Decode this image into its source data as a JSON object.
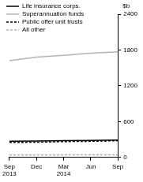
{
  "chart_data": {
    "type": "line",
    "y_label": "$b",
    "categories": [
      "Sep 2013",
      "Dec",
      "Mar 2014",
      "Jun",
      "Sep"
    ],
    "series": [
      {
        "name": "Life insurance corps.",
        "color": "#000000",
        "line_style": "solid",
        "values": [
          270,
          275,
          280,
          285,
          290
        ]
      },
      {
        "name": "Superannuation funds",
        "color": "#b3b3b3",
        "line_style": "solid",
        "values": [
          1620,
          1680,
          1710,
          1745,
          1770
        ]
      },
      {
        "name": "Public offer unit trusts",
        "color": "#000000",
        "line_style": "dashed",
        "values": [
          250,
          255,
          265,
          270,
          280
        ]
      },
      {
        "name": "All other",
        "color": "#b3b3b3",
        "line_style": "dashed",
        "values": [
          40,
          40,
          42,
          42,
          44
        ]
      }
    ],
    "ylim": [
      0,
      2400
    ],
    "yticks": [
      0,
      600,
      1200,
      1800,
      2400
    ],
    "grid": false,
    "legend": "top-left"
  }
}
